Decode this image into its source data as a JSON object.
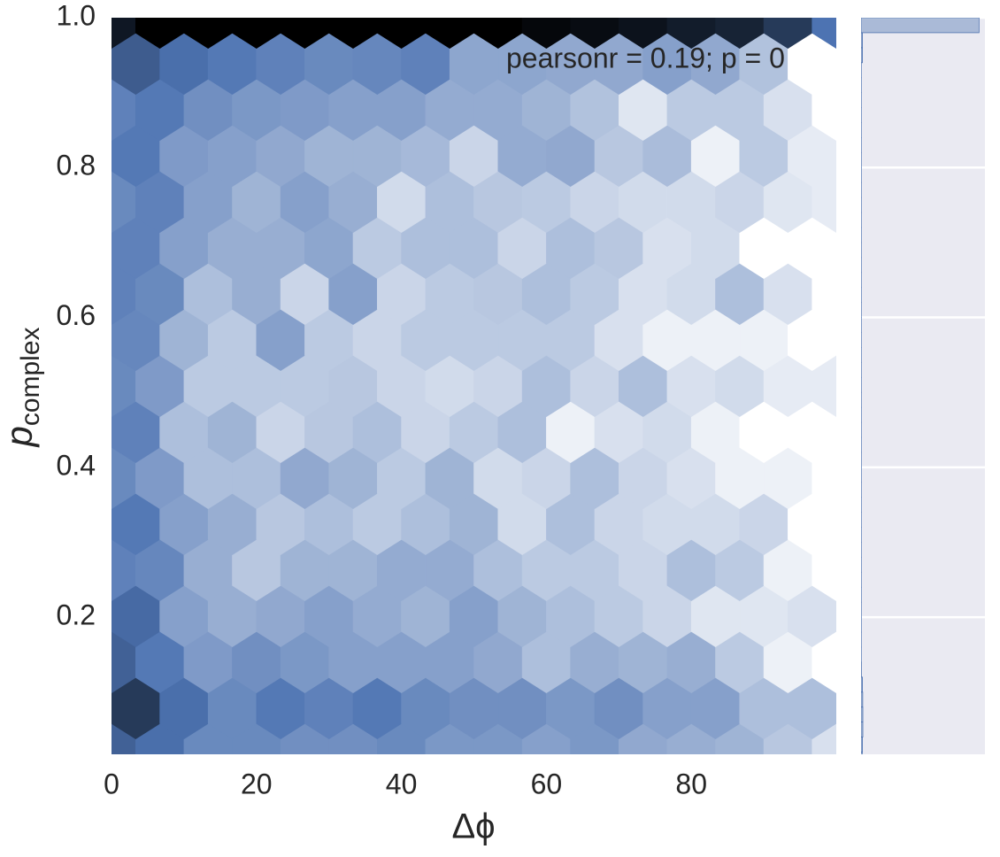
{
  "chart_data": {
    "type": "hexbin",
    "annotation": "pearsonr = 0.19; p = 0",
    "xlabel": "Δϕ",
    "ylabel": "p",
    "ylabel_sub": "complex",
    "color": "#4c72b0",
    "xlim": [
      0,
      100
    ],
    "ylim": [
      0.017,
      1.0
    ],
    "xticks": [
      0,
      20,
      40,
      60,
      80
    ],
    "yticks": [
      0.2,
      0.4,
      0.6,
      0.8,
      {
        "value": 1.0,
        "label": "1.0"
      }
    ],
    "counts": [
      [
        58,
        52,
        42,
        42,
        40,
        40,
        42,
        37,
        37,
        34,
        37,
        31,
        29,
        27,
        20,
        11
      ],
      [
        75,
        52,
        42,
        48,
        45,
        48,
        42,
        40,
        40,
        37,
        40,
        34,
        34,
        23,
        23
      ],
      [
        58,
        48,
        36,
        40,
        37,
        34,
        34,
        34,
        31,
        23,
        29,
        27,
        29,
        19,
        5,
        0
      ],
      [
        54,
        34,
        29,
        31,
        34,
        30,
        27,
        34,
        27,
        23,
        19,
        15,
        9,
        9,
        11
      ],
      [
        45,
        43,
        29,
        20,
        27,
        27,
        30,
        30,
        23,
        19,
        19,
        15,
        23,
        19,
        5,
        0
      ],
      [
        48,
        34,
        29,
        20,
        23,
        19,
        23,
        27,
        13,
        23,
        15,
        13,
        13,
        15,
        0
      ],
      [
        42,
        36,
        23,
        23,
        31,
        27,
        19,
        27,
        13,
        15,
        23,
        15,
        11,
        5,
        5,
        0
      ],
      [
        45,
        23,
        27,
        15,
        20,
        23,
        15,
        19,
        23,
        5,
        11,
        13,
        5,
        0,
        0
      ],
      [
        42,
        36,
        19,
        19,
        19,
        20,
        15,
        13,
        15,
        23,
        15,
        23,
        11,
        13,
        7,
        7
      ],
      [
        43,
        27,
        19,
        34,
        19,
        15,
        19,
        19,
        19,
        19,
        11,
        5,
        5,
        5,
        0
      ],
      [
        45,
        42,
        23,
        29,
        15,
        34,
        15,
        19,
        20,
        23,
        19,
        11,
        13,
        23,
        11,
        0
      ],
      [
        45,
        34,
        29,
        29,
        32,
        19,
        23,
        23,
        15,
        23,
        20,
        11,
        13,
        0,
        0
      ],
      [
        42,
        45,
        34,
        27,
        34,
        29,
        13,
        23,
        20,
        19,
        15,
        13,
        13,
        15,
        9,
        7
      ],
      [
        48,
        36,
        34,
        31,
        27,
        27,
        25,
        15,
        30,
        31,
        20,
        24,
        5,
        19,
        7
      ],
      [
        45,
        48,
        40,
        37,
        36,
        34,
        34,
        30,
        30,
        27,
        22,
        9,
        19,
        19,
        11,
        0
      ],
      [
        60,
        52,
        48,
        45,
        42,
        43,
        45,
        32,
        32,
        31,
        31,
        34,
        31,
        22,
        0
      ],
      [
        90,
        100,
        100,
        100,
        100,
        100,
        100,
        100,
        100,
        97,
        95,
        92,
        88,
        85,
        75,
        50
      ]
    ],
    "marginal": {
      "xlim": [
        0,
        1050
      ],
      "bins": [
        0,
        0.02,
        0.04,
        0.06,
        0.08,
        0.1,
        0.12,
        0.14,
        0.16,
        0.18,
        0.2,
        0.22,
        0.24,
        0.26,
        0.28,
        0.3,
        0.32,
        0.34,
        0.36,
        0.38,
        0.4,
        0.42,
        0.44,
        0.46,
        0.48,
        0.5,
        0.52,
        0.54,
        0.56,
        0.58,
        0.6,
        0.62,
        0.64,
        0.66,
        0.68,
        0.7,
        0.72,
        0.74,
        0.76,
        0.78,
        0.8,
        0.82,
        0.84,
        0.86,
        0.88,
        0.9,
        0.92,
        0.94,
        0.96,
        0.98,
        1.0
      ],
      "counts": [
        10,
        12,
        15,
        15,
        14,
        12,
        3,
        2,
        2,
        2,
        2,
        2,
        2,
        2,
        2,
        2,
        2,
        2,
        2,
        2,
        2,
        2,
        2,
        2,
        2,
        2,
        2,
        2,
        2,
        2,
        2,
        2,
        2,
        2,
        2,
        2,
        2,
        2,
        2,
        2,
        2,
        2,
        2,
        2,
        2,
        2,
        2,
        12,
        12,
        1000
      ]
    }
  }
}
